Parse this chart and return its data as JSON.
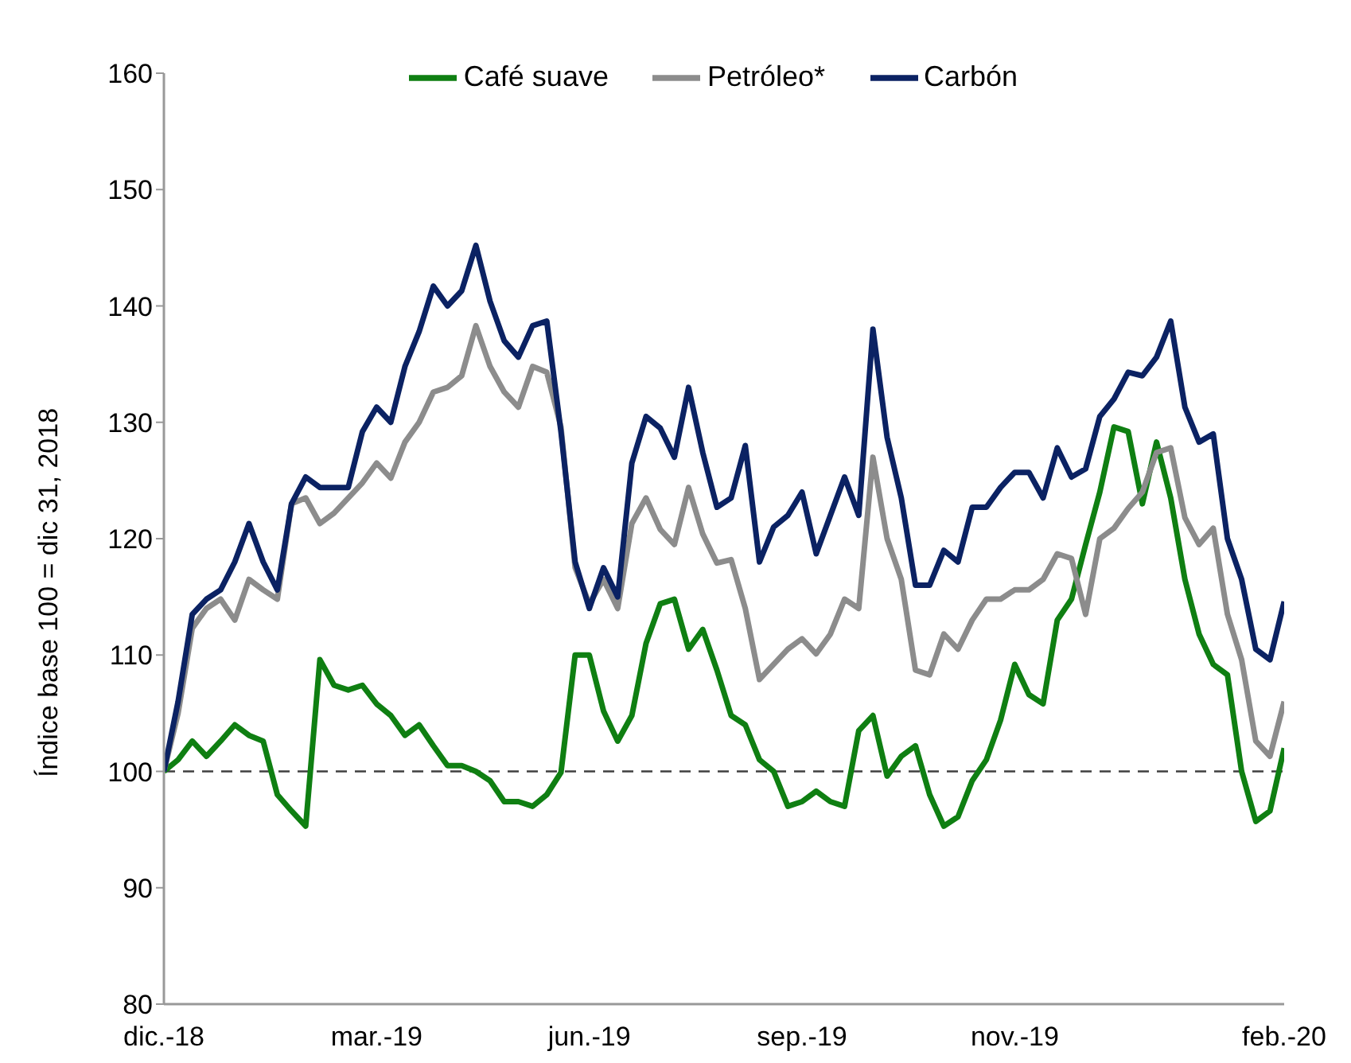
{
  "chart_data": {
    "type": "line",
    "ylabel": "Índice base 100 = dic 31, 2018",
    "categories": [
      "dic.-18",
      null,
      null,
      null,
      null,
      null,
      null,
      null,
      null,
      null,
      null,
      null,
      null,
      null,
      null,
      "mar.-19",
      null,
      null,
      null,
      null,
      null,
      null,
      null,
      null,
      null,
      null,
      null,
      null,
      null,
      null,
      "jun.-19",
      null,
      null,
      null,
      null,
      null,
      null,
      null,
      null,
      null,
      null,
      null,
      null,
      null,
      null,
      "sep.-19",
      null,
      null,
      null,
      null,
      null,
      null,
      null,
      null,
      null,
      null,
      null,
      null,
      null,
      null,
      "nov.-19",
      null,
      null,
      null,
      null,
      null,
      null,
      null,
      null,
      null,
      null,
      null,
      null,
      null,
      null,
      null,
      null,
      null,
      null,
      "feb.-20"
    ],
    "series": [
      {
        "name": "Café suave",
        "color": "#0f7f12",
        "values": [
          100,
          101,
          102.6,
          101.3,
          102.6,
          104,
          103.1,
          102.6,
          98,
          96.6,
          95.3,
          109.6,
          107.4,
          107,
          107.4,
          105.8,
          104.8,
          103.1,
          104,
          102.2,
          100.5,
          100.5,
          100,
          99.2,
          97.4,
          97.4,
          97,
          98,
          99.9,
          110,
          110,
          105.2,
          102.6,
          104.8,
          111,
          114.4,
          114.8,
          110.5,
          112.2,
          108.7,
          104.8,
          104,
          101,
          100,
          97,
          97.4,
          98.3,
          97.4,
          97,
          103.5,
          104.8,
          99.6,
          101.3,
          102.2,
          98,
          95.3,
          96.1,
          99.2,
          101,
          104.4,
          109.2,
          106.6,
          105.8,
          113,
          114.8,
          119.5,
          124,
          129.6,
          129.2,
          123,
          128.3,
          123.5,
          116.5,
          111.8,
          109.2,
          108.3,
          100,
          95.7,
          96.6,
          102
        ]
      },
      {
        "name": "Petróleo*",
        "color": "#8c8c8c",
        "values": [
          100,
          105,
          112.3,
          114,
          114.8,
          113,
          116.5,
          115.6,
          114.8,
          123,
          123.5,
          121.3,
          122.2,
          123.5,
          124.8,
          126.5,
          125.2,
          128.3,
          130,
          132.6,
          133,
          134,
          138.3,
          134.8,
          132.6,
          131.3,
          134.8,
          134.3,
          129.6,
          117.5,
          114.4,
          116.5,
          114,
          121.3,
          123.5,
          120.8,
          119.5,
          124.4,
          120.4,
          117.9,
          118.2,
          114,
          107.9,
          109.2,
          110.5,
          111.4,
          110.1,
          111.8,
          114.8,
          114,
          127,
          120,
          116.5,
          108.7,
          108.3,
          111.8,
          110.5,
          113,
          114.8,
          114.8,
          115.6,
          115.6,
          116.5,
          118.7,
          118.3,
          113.5,
          120,
          120.9,
          122.6,
          124,
          127.4,
          127.8,
          121.8,
          119.5,
          120.9,
          113.5,
          109.6,
          102.6,
          101.3,
          106
        ]
      },
      {
        "name": "Carbón",
        "color": "#0b2263",
        "values": [
          100,
          106,
          113.5,
          114.8,
          115.6,
          118,
          121.3,
          118,
          115.6,
          123,
          125.3,
          124.4,
          124.4,
          124.4,
          129.2,
          131.3,
          130,
          134.8,
          137.8,
          141.7,
          140,
          141.3,
          145.2,
          140.4,
          137,
          135.6,
          138.3,
          138.7,
          129.2,
          118,
          114,
          117.5,
          115,
          126.5,
          130.5,
          129.5,
          127,
          133,
          127.4,
          122.7,
          123.5,
          128,
          118,
          121,
          122,
          124,
          118.7,
          122,
          125.3,
          122,
          138,
          128.7,
          123.5,
          116,
          116,
          119,
          118,
          122.7,
          122.7,
          124.4,
          125.7,
          125.7,
          123.5,
          127.8,
          125.3,
          126,
          130.5,
          132,
          134.3,
          134,
          135.6,
          138.7,
          131.3,
          128.3,
          129,
          120,
          116.5,
          110.5,
          109.6,
          114.6
        ]
      }
    ],
    "ylim": [
      80,
      160
    ],
    "yticks": [
      80,
      90,
      100,
      110,
      120,
      130,
      140,
      150,
      160
    ],
    "ref_lines": [
      {
        "axis": "y",
        "value": 100,
        "color": "#404040",
        "line_style": "dashed"
      }
    ],
    "grid": false,
    "legend": "top",
    "marker": "none",
    "line_style": "solid"
  }
}
